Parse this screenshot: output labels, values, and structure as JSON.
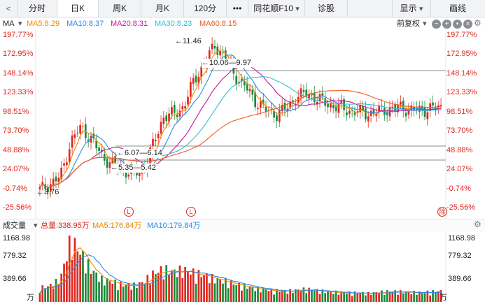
{
  "toolbar": {
    "tabs": [
      "分时",
      "日K",
      "周K",
      "月K",
      "120分"
    ],
    "more": "•••",
    "f10_label": "同花顺F10",
    "diagnose": "诊股",
    "display": "显示",
    "draw": "画线"
  },
  "indicator_bar": {
    "name": "MA",
    "ma5": "MA5:8.29",
    "ma10": "MA10:8.37",
    "ma20": "MA20:8.31",
    "ma30": "MA30:8.23",
    "ma60": "MA60:8.15",
    "restoration": "前复权"
  },
  "price_axis": [
    "197.77%",
    "172.95%",
    "148.14%",
    "123.33%",
    "98.51%",
    "73.70%",
    "48.88%",
    "24.07%",
    "-0.74%",
    "-25.56%"
  ],
  "annotations": {
    "high": "11.46",
    "range_top": "10.06—9.97",
    "range_mid": "6.07—6.14",
    "range_low": "5.35—5.42",
    "low": "3.76"
  },
  "markers": {
    "l1": "L",
    "l2": "L",
    "right": "除"
  },
  "volume_bar": {
    "name": "成交量",
    "total": "总量:338.95万",
    "ma5": "MA5:176.84万",
    "ma10": "MA10:179.84万"
  },
  "volume_axis": [
    "1168.98",
    "779.32",
    "389.66"
  ],
  "volume_unit": "万",
  "colors": {
    "up": "#e0271f",
    "down": "#1a8b3b",
    "ma5": "#f08a00",
    "ma10": "#2f8ae8",
    "ma20": "#c2189b",
    "ma30": "#27c2d6",
    "ma60": "#f05a20",
    "axis": "#e0271f"
  },
  "chart_data": {
    "type": "candlestick",
    "price_pct_range": [
      -25.56,
      197.77
    ],
    "close_pct_sample": [
      -3,
      5,
      14,
      60,
      78,
      63,
      42,
      30,
      24,
      18,
      22,
      55,
      92,
      95,
      105,
      140,
      160,
      185,
      168,
      145,
      130,
      112,
      100,
      95,
      103,
      118,
      122,
      115,
      108,
      104,
      100,
      98,
      96,
      99,
      102,
      104,
      101,
      100,
      103,
      104
    ],
    "volume_range": [
      0,
      1168.98
    ],
    "volume_sample": [
      260,
      300,
      420,
      1168,
      900,
      600,
      420,
      380,
      320,
      300,
      360,
      520,
      610,
      560,
      600,
      540,
      500,
      430,
      390,
      330,
      290,
      250,
      230,
      210,
      200,
      220,
      240,
      210,
      190,
      180,
      170,
      170,
      160,
      180,
      200,
      190,
      180,
      175,
      190,
      200
    ]
  }
}
